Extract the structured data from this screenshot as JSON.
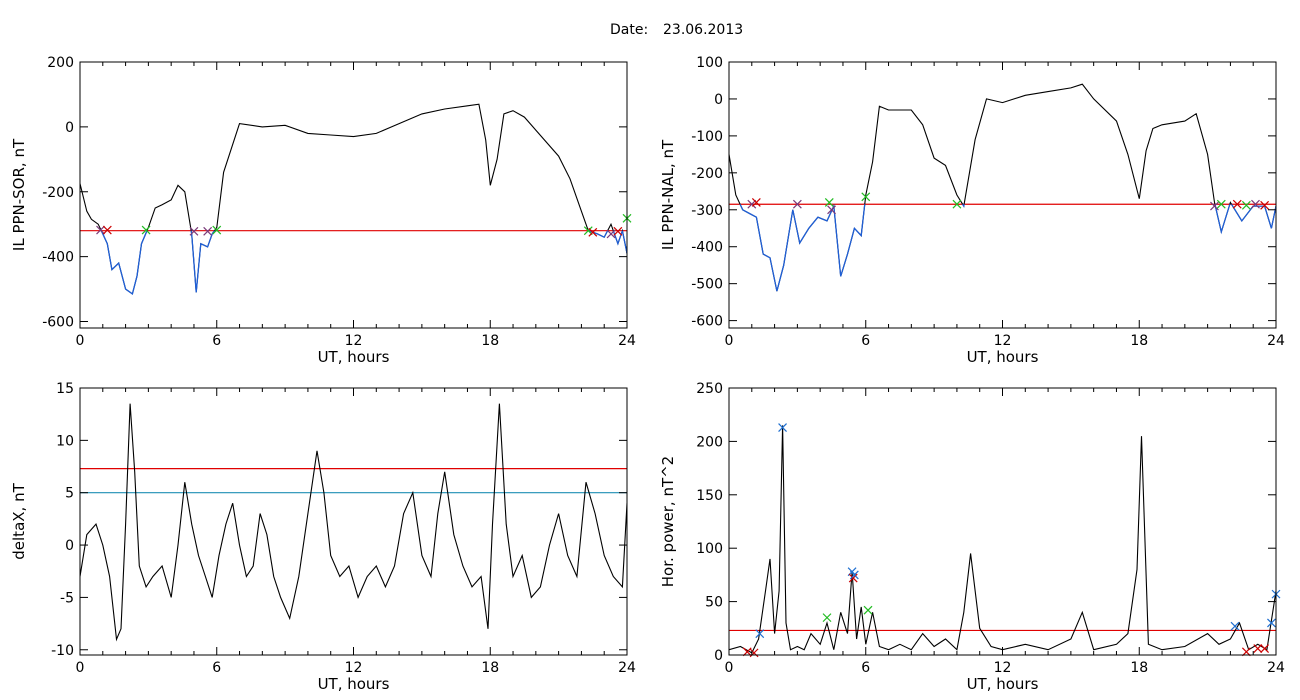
{
  "header": {
    "date_label": "Date:",
    "date_value": "23.06.2013"
  },
  "colors": {
    "signal": "#000000",
    "below_threshold": "#1f5fd6",
    "threshold_red": "#e00000",
    "threshold_blue": "#1f8fb4",
    "marker_green": "#22bb22",
    "marker_red": "#cc0000",
    "marker_blue": "#1f6fd0",
    "marker_purple": "#7a3a7a"
  },
  "chart_data": [
    {
      "id": "sor",
      "type": "line",
      "xlabel": "UT, hours",
      "ylabel": "IL PPN-SOR, nT",
      "xlim": [
        0,
        24
      ],
      "ylim": [
        -620,
        200
      ],
      "xticks": [
        0,
        6,
        12,
        18,
        24
      ],
      "yticks": [
        200,
        0,
        -200,
        -400,
        -600
      ],
      "thresholds": [
        {
          "y": -320,
          "color": "#e00000"
        }
      ],
      "series": [
        {
          "x": [
            0,
            0.3,
            0.5,
            0.8,
            1.0,
            1.2,
            1.4,
            1.7,
            2.0,
            2.3,
            2.5,
            2.7,
            3.0,
            3.3,
            3.6,
            4.0,
            4.3,
            4.6,
            4.9,
            5.1,
            5.3,
            5.6,
            5.8,
            6.0,
            6.3,
            7,
            8,
            9,
            10,
            11,
            12,
            13,
            14,
            15,
            16,
            17,
            17.5,
            17.8,
            18.0,
            18.3,
            18.6,
            19,
            19.5,
            20,
            21,
            21.5,
            22,
            22.3,
            22.7,
            23.0,
            23.3,
            23.6,
            23.8,
            24
          ],
          "y": [
            -175,
            -260,
            -285,
            -300,
            -330,
            -360,
            -440,
            -420,
            -500,
            -515,
            -460,
            -360,
            -310,
            -250,
            -240,
            -225,
            -180,
            -200,
            -330,
            -510,
            -360,
            -370,
            -330,
            -310,
            -140,
            10,
            0,
            5,
            -20,
            -25,
            -30,
            -20,
            10,
            40,
            55,
            65,
            70,
            -40,
            -180,
            -100,
            40,
            50,
            30,
            -10,
            -90,
            -160,
            -260,
            -320,
            -330,
            -340,
            -300,
            -360,
            -320,
            -390
          ]
        }
      ],
      "markers": [
        {
          "x": 0.9,
          "y": -318,
          "color": "#7a3a7a"
        },
        {
          "x": 1.2,
          "y": -318,
          "color": "#cc0000"
        },
        {
          "x": 2.9,
          "y": -318,
          "color": "#22bb22"
        },
        {
          "x": 5.0,
          "y": -322,
          "color": "#7a3a7a"
        },
        {
          "x": 5.6,
          "y": -322,
          "color": "#7a3a7a"
        },
        {
          "x": 6.0,
          "y": -318,
          "color": "#22bb22"
        },
        {
          "x": 22.3,
          "y": -320,
          "color": "#22bb22"
        },
        {
          "x": 22.5,
          "y": -325,
          "color": "#cc0000"
        },
        {
          "x": 23.3,
          "y": -330,
          "color": "#7a3a7a"
        },
        {
          "x": 23.6,
          "y": -322,
          "color": "#cc0000"
        },
        {
          "x": 24.0,
          "y": -282,
          "color": "#22bb22"
        }
      ]
    },
    {
      "id": "nal",
      "type": "line",
      "xlabel": "UT, hours",
      "ylabel": "IL PPN-NAL, nT",
      "xlim": [
        0,
        24
      ],
      "ylim": [
        -620,
        100
      ],
      "xticks": [
        0,
        6,
        12,
        18,
        24
      ],
      "yticks": [
        100,
        0,
        -100,
        -200,
        -300,
        -400,
        -500,
        -600
      ],
      "thresholds": [
        {
          "y": -285,
          "color": "#e00000"
        }
      ],
      "series": [
        {
          "x": [
            0,
            0.3,
            0.6,
            0.9,
            1.2,
            1.5,
            1.8,
            2.1,
            2.4,
            2.8,
            3.1,
            3.5,
            3.9,
            4.3,
            4.6,
            4.9,
            5.2,
            5.5,
            5.8,
            6.0,
            6.3,
            6.6,
            7.0,
            7.5,
            8.0,
            8.5,
            9.0,
            9.5,
            10.0,
            10.3,
            10.8,
            11.3,
            12,
            13,
            14,
            15,
            15.5,
            16,
            17,
            17.5,
            18.0,
            18.3,
            18.6,
            19,
            20,
            20.5,
            21,
            21.3,
            21.6,
            22,
            22.5,
            23,
            23.5,
            23.8,
            24
          ],
          "y": [
            -150,
            -260,
            -300,
            -310,
            -320,
            -420,
            -430,
            -520,
            -450,
            -300,
            -390,
            -350,
            -320,
            -330,
            -290,
            -480,
            -420,
            -350,
            -370,
            -260,
            -170,
            -20,
            -30,
            -30,
            -30,
            -70,
            -160,
            -180,
            -260,
            -290,
            -110,
            0,
            -10,
            10,
            20,
            30,
            40,
            0,
            -60,
            -150,
            -270,
            -140,
            -80,
            -70,
            -60,
            -40,
            -150,
            -280,
            -360,
            -280,
            -330,
            -290,
            -290,
            -350,
            -290
          ]
        }
      ],
      "markers": [
        {
          "x": 1.0,
          "y": -285,
          "color": "#7a3a7a"
        },
        {
          "x": 1.2,
          "y": -280,
          "color": "#cc0000"
        },
        {
          "x": 3.0,
          "y": -285,
          "color": "#7a3a7a"
        },
        {
          "x": 4.4,
          "y": -280,
          "color": "#22bb22"
        },
        {
          "x": 4.5,
          "y": -300,
          "color": "#7a3a7a"
        },
        {
          "x": 6.0,
          "y": -265,
          "color": "#22bb22"
        },
        {
          "x": 10.0,
          "y": -285,
          "color": "#22bb22"
        },
        {
          "x": 21.3,
          "y": -290,
          "color": "#7a3a7a"
        },
        {
          "x": 21.6,
          "y": -285,
          "color": "#22bb22"
        },
        {
          "x": 22.3,
          "y": -285,
          "color": "#cc0000"
        },
        {
          "x": 22.7,
          "y": -288,
          "color": "#22bb22"
        },
        {
          "x": 23.1,
          "y": -285,
          "color": "#7a3a7a"
        },
        {
          "x": 23.5,
          "y": -288,
          "color": "#cc0000"
        }
      ]
    },
    {
      "id": "deltax",
      "type": "line",
      "xlabel": "UT, hours",
      "ylabel": "deltaX, nT",
      "xlim": [
        0,
        24
      ],
      "ylim": [
        -10.5,
        15
      ],
      "xticks": [
        0,
        6,
        12,
        18,
        24
      ],
      "yticks": [
        15,
        10,
        5,
        0,
        -5,
        -10
      ],
      "thresholds": [
        {
          "y": 7.3,
          "color": "#e00000"
        },
        {
          "y": 5.0,
          "color": "#1f8fb4"
        }
      ],
      "series": [
        {
          "x": [
            0,
            0.3,
            0.7,
            1.0,
            1.3,
            1.6,
            1.8,
            2.0,
            2.2,
            2.4,
            2.6,
            2.9,
            3.2,
            3.6,
            4.0,
            4.3,
            4.6,
            4.9,
            5.2,
            5.5,
            5.8,
            6.1,
            6.4,
            6.7,
            7.0,
            7.3,
            7.6,
            7.9,
            8.2,
            8.5,
            8.8,
            9.2,
            9.6,
            10.0,
            10.4,
            10.7,
            11.0,
            11.4,
            11.8,
            12.2,
            12.6,
            13.0,
            13.4,
            13.8,
            14.2,
            14.6,
            15.0,
            15.4,
            15.7,
            16.0,
            16.4,
            16.8,
            17.2,
            17.6,
            17.9,
            18.1,
            18.4,
            18.7,
            19.0,
            19.4,
            19.8,
            20.2,
            20.6,
            21.0,
            21.4,
            21.8,
            22.2,
            22.6,
            23.0,
            23.4,
            23.8,
            24
          ],
          "y": [
            -3,
            1,
            2,
            0,
            -3,
            -9,
            -8,
            2,
            13.5,
            7,
            -2,
            -4,
            -3,
            -2,
            -5,
            0,
            6,
            2,
            -1,
            -3,
            -5,
            -1,
            2,
            4,
            0,
            -3,
            -2,
            3,
            1,
            -3,
            -5,
            -7,
            -3,
            3,
            9,
            5,
            -1,
            -3,
            -2,
            -5,
            -3,
            -2,
            -4,
            -2,
            3,
            5,
            -1,
            -3,
            3,
            7,
            1,
            -2,
            -4,
            -3,
            -8,
            2,
            13.5,
            2,
            -3,
            -1,
            -5,
            -4,
            0,
            3,
            -1,
            -3,
            6,
            3,
            -1,
            -3,
            -4,
            4
          ]
        }
      ],
      "markers": []
    },
    {
      "id": "power",
      "type": "line",
      "xlabel": "UT, hours",
      "ylabel": "Hor. power, nT^2",
      "xlim": [
        0,
        24
      ],
      "ylim": [
        0,
        250
      ],
      "xticks": [
        0,
        6,
        12,
        18,
        24
      ],
      "yticks": [
        250,
        200,
        150,
        100,
        50,
        0
      ],
      "thresholds": [
        {
          "y": 23,
          "color": "#e00000"
        }
      ],
      "series": [
        {
          "x": [
            0,
            0.5,
            1.0,
            1.3,
            1.6,
            1.8,
            2.0,
            2.2,
            2.35,
            2.5,
            2.7,
            3.0,
            3.3,
            3.6,
            4.0,
            4.3,
            4.6,
            4.9,
            5.2,
            5.4,
            5.6,
            5.8,
            6.0,
            6.3,
            6.6,
            7,
            7.5,
            8,
            8.5,
            9,
            9.5,
            10,
            10.3,
            10.6,
            11,
            11.5,
            12,
            13,
            14,
            15,
            15.5,
            16,
            17,
            17.5,
            17.9,
            18.1,
            18.4,
            19,
            20,
            21,
            21.5,
            22,
            22.4,
            22.8,
            23.2,
            23.6,
            24
          ],
          "y": [
            5,
            8,
            2,
            15,
            60,
            90,
            20,
            60,
            215,
            30,
            5,
            8,
            5,
            20,
            10,
            30,
            5,
            40,
            20,
            78,
            15,
            45,
            10,
            40,
            8,
            5,
            10,
            5,
            20,
            8,
            15,
            5,
            40,
            95,
            25,
            8,
            5,
            10,
            5,
            15,
            40,
            5,
            10,
            20,
            80,
            205,
            10,
            5,
            8,
            20,
            10,
            15,
            30,
            5,
            10,
            5,
            60
          ]
        }
      ],
      "markers": [
        {
          "x": 0.8,
          "y": 3,
          "color": "#cc0000"
        },
        {
          "x": 1.1,
          "y": 2,
          "color": "#cc0000"
        },
        {
          "x": 1.35,
          "y": 20,
          "color": "#1f6fd0"
        },
        {
          "x": 2.35,
          "y": 213,
          "color": "#1f6fd0"
        },
        {
          "x": 4.3,
          "y": 35,
          "color": "#22bb22"
        },
        {
          "x": 5.4,
          "y": 78,
          "color": "#1f6fd0"
        },
        {
          "x": 5.45,
          "y": 72,
          "color": "#cc0000"
        },
        {
          "x": 5.5,
          "y": 75,
          "color": "#1f6fd0"
        },
        {
          "x": 6.1,
          "y": 42,
          "color": "#22bb22"
        },
        {
          "x": 22.2,
          "y": 27,
          "color": "#1f6fd0"
        },
        {
          "x": 22.7,
          "y": 3,
          "color": "#cc0000"
        },
        {
          "x": 23.2,
          "y": 6,
          "color": "#cc0000"
        },
        {
          "x": 23.5,
          "y": 6,
          "color": "#cc0000"
        },
        {
          "x": 23.8,
          "y": 30,
          "color": "#1f6fd0"
        },
        {
          "x": 24.0,
          "y": 57,
          "color": "#1f6fd0"
        }
      ]
    }
  ]
}
